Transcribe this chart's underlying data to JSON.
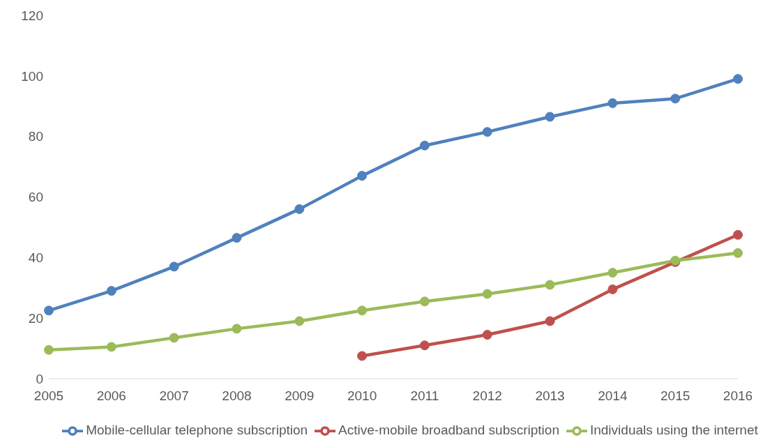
{
  "chart_data": {
    "type": "line",
    "categories": [
      "2005",
      "2006",
      "2007",
      "2008",
      "2009",
      "2010",
      "2011",
      "2012",
      "2013",
      "2014",
      "2015",
      "2016"
    ],
    "series": [
      {
        "name": "Mobile-cellular telephone subscription",
        "color": "#4f81bd",
        "values": [
          22.5,
          29,
          37,
          46.5,
          56,
          67,
          77,
          81.5,
          86.5,
          91,
          92.5,
          99
        ]
      },
      {
        "name": "Active-mobile broadband subscription",
        "color": "#c0504d",
        "values": [
          null,
          null,
          null,
          null,
          null,
          7.5,
          11,
          14.5,
          19,
          29.5,
          38.5,
          47.5
        ]
      },
      {
        "name": "Individuals using the internet",
        "color": "#9bbb59",
        "values": [
          9.5,
          10.5,
          13.5,
          16.5,
          19,
          22.5,
          25.5,
          28,
          31,
          35,
          39,
          41.5
        ]
      }
    ],
    "ylim": [
      0,
      120
    ],
    "yticks": [
      0,
      20,
      40,
      60,
      80,
      100,
      120
    ],
    "grid": false,
    "legend": "bottom",
    "marker": "circle",
    "line_style": "solid"
  }
}
